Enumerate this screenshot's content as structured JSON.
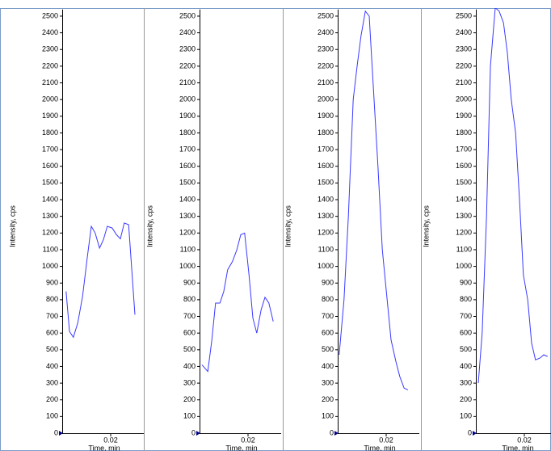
{
  "chart_data": [
    {
      "type": "line",
      "ylabel": "Intensity, cps",
      "xlabel": "Time, min",
      "x": [
        0.0108,
        0.0115,
        0.0123,
        0.0132,
        0.0142,
        0.0152,
        0.016,
        0.0168,
        0.0177,
        0.0185,
        0.0193,
        0.0203,
        0.0212,
        0.022,
        0.0228,
        0.0237,
        0.025
      ],
      "values": [
        850,
        610,
        575,
        660,
        820,
        1060,
        1240,
        1200,
        1110,
        1160,
        1240,
        1230,
        1190,
        1165,
        1260,
        1250,
        710
      ],
      "color": "#3a3aff",
      "xlim": [
        0.01,
        0.027
      ],
      "xticks": [
        0.02
      ],
      "ylim": [
        0,
        2540
      ],
      "yticks": [
        0,
        100,
        200,
        300,
        400,
        500,
        600,
        700,
        800,
        900,
        1000,
        1100,
        1200,
        1300,
        1400,
        1500,
        1600,
        1700,
        1800,
        1900,
        2000,
        2100,
        2200,
        2300,
        2400,
        2500
      ]
    },
    {
      "type": "line",
      "ylabel": "Intensity, cps",
      "xlabel": "Time, min",
      "x": [
        0.0105,
        0.0117,
        0.0125,
        0.0133,
        0.0142,
        0.015,
        0.0158,
        0.0168,
        0.0177,
        0.0185,
        0.0193,
        0.0202,
        0.021,
        0.0218,
        0.0227,
        0.0235,
        0.0243,
        0.0252
      ],
      "values": [
        410,
        370,
        550,
        780,
        780,
        850,
        980,
        1030,
        1100,
        1190,
        1200,
        950,
        690,
        600,
        740,
        815,
        780,
        670
      ],
      "color": "#3a3aff",
      "xlim": [
        0.01,
        0.027
      ],
      "xticks": [
        0.02
      ],
      "ylim": [
        0,
        2540
      ],
      "yticks": [
        0,
        100,
        200,
        300,
        400,
        500,
        600,
        700,
        800,
        900,
        1000,
        1100,
        1200,
        1300,
        1400,
        1500,
        1600,
        1700,
        1800,
        1900,
        2000,
        2100,
        2200,
        2300,
        2400,
        2500
      ]
    },
    {
      "type": "line",
      "ylabel": "Intensity, cps",
      "xlabel": "Time, min",
      "x": [
        0.0103,
        0.0113,
        0.0122,
        0.0132,
        0.014,
        0.0148,
        0.0157,
        0.0165,
        0.0173,
        0.0183,
        0.0192,
        0.0202,
        0.021,
        0.022,
        0.0228,
        0.0237,
        0.0245
      ],
      "values": [
        470,
        800,
        1300,
        2000,
        2200,
        2380,
        2530,
        2500,
        2100,
        1600,
        1100,
        800,
        560,
        430,
        340,
        270,
        260
      ],
      "color": "#3a3aff",
      "xlim": [
        0.01,
        0.027
      ],
      "xticks": [
        0.02
      ],
      "ylim": [
        0,
        2540
      ],
      "yticks": [
        0,
        100,
        200,
        300,
        400,
        500,
        600,
        700,
        800,
        900,
        1000,
        1100,
        1200,
        1300,
        1400,
        1500,
        1600,
        1700,
        1800,
        1900,
        2000,
        2100,
        2200,
        2300,
        2400,
        2500
      ]
    },
    {
      "type": "line",
      "ylabel": "Intensity, cps",
      "xlabel": "Time, min",
      "x": [
        0.0105,
        0.0113,
        0.0122,
        0.013,
        0.014,
        0.0148,
        0.0157,
        0.0165,
        0.0173,
        0.0182,
        0.019,
        0.0198,
        0.0207,
        0.0215,
        0.0223,
        0.0232,
        0.024,
        0.0248
      ],
      "values": [
        300,
        600,
        1300,
        2200,
        2550,
        2530,
        2460,
        2280,
        2000,
        1800,
        1400,
        950,
        800,
        540,
        440,
        450,
        470,
        460
      ],
      "color": "#3a3aff",
      "xlim": [
        0.01,
        0.027
      ],
      "xticks": [
        0.02
      ],
      "ylim": [
        0,
        2540
      ],
      "yticks": [
        0,
        100,
        200,
        300,
        400,
        500,
        600,
        700,
        800,
        900,
        1000,
        1100,
        1200,
        1300,
        1400,
        1500,
        1600,
        1700,
        1800,
        1900,
        2000,
        2100,
        2200,
        2300,
        2400,
        2500
      ]
    }
  ]
}
